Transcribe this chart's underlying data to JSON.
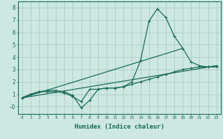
{
  "xlabel": "Humidex (Indice chaleur)",
  "xlim": [
    -0.5,
    23.5
  ],
  "ylim": [
    -0.6,
    8.5
  ],
  "xticks": [
    0,
    1,
    2,
    3,
    4,
    5,
    6,
    7,
    8,
    9,
    10,
    11,
    12,
    13,
    14,
    15,
    16,
    17,
    18,
    19,
    20,
    21,
    22,
    23
  ],
  "yticks": [
    0,
    1,
    2,
    3,
    4,
    5,
    6,
    7,
    8
  ],
  "ytick_labels": [
    "-0",
    "1",
    "2",
    "3",
    "4",
    "5",
    "6",
    "7",
    "8"
  ],
  "background_color": "#cce8e0",
  "grid_color": "#aaccc4",
  "line_color": "#1a6b5a",
  "line1_x": [
    0,
    1,
    2,
    3,
    4,
    5,
    6,
    7,
    8,
    9,
    10,
    11,
    12,
    13,
    14,
    15,
    16,
    17,
    18,
    19,
    20,
    21,
    22,
    23
  ],
  "line1_y": [
    0.7,
    1.0,
    1.2,
    1.2,
    1.2,
    1.1,
    0.8,
    0.4,
    1.4,
    1.4,
    1.5,
    1.5,
    1.6,
    1.8,
    2.0,
    2.2,
    2.4,
    2.6,
    2.8,
    3.0,
    3.1,
    3.2,
    3.2,
    3.3
  ],
  "line2_x": [
    0,
    1,
    2,
    3,
    4,
    5,
    6,
    7,
    8,
    9,
    10,
    11,
    12,
    13,
    14,
    15,
    16,
    17,
    18,
    19,
    20,
    21,
    22,
    23
  ],
  "line2_y": [
    0.7,
    1.0,
    1.2,
    1.3,
    1.3,
    1.2,
    0.9,
    -0.1,
    0.5,
    1.4,
    1.5,
    1.5,
    1.6,
    2.0,
    3.7,
    6.9,
    7.9,
    7.2,
    5.7,
    4.7,
    3.6,
    3.3,
    3.2,
    3.2
  ],
  "line3_x": [
    0,
    23
  ],
  "line3_y": [
    0.7,
    3.3
  ],
  "line4_x": [
    0,
    19
  ],
  "line4_y": [
    0.7,
    4.7
  ]
}
